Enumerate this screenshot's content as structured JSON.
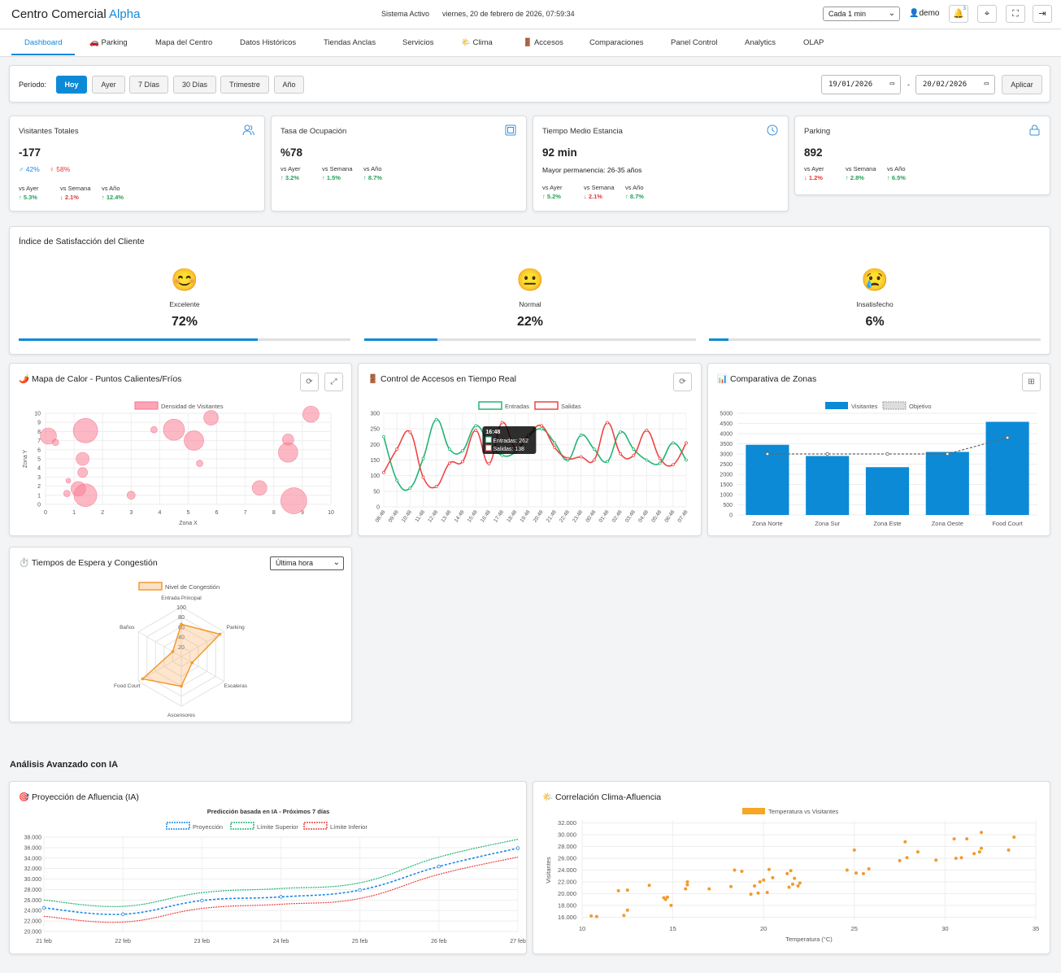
{
  "header": {
    "brand_prefix": "Centro Comercial ",
    "brand_accent": "Alpha",
    "status": "Sistema Activo",
    "datetime": "viernes, 20 de febrero de 2026, 07:59:34",
    "refresh_select": "Cada 1 min",
    "user": "demo",
    "notification_count": "3"
  },
  "tabs": [
    {
      "label": "Dashboard",
      "icon": ""
    },
    {
      "label": "Parking",
      "icon": "🚗"
    },
    {
      "label": "Mapa del Centro",
      "icon": ""
    },
    {
      "label": "Datos Históricos",
      "icon": ""
    },
    {
      "label": "Tiendas Anclas",
      "icon": ""
    },
    {
      "label": "Servicios",
      "icon": ""
    },
    {
      "label": "Clima",
      "icon": "🌤️"
    },
    {
      "label": "Accesos",
      "icon": "🚪"
    },
    {
      "label": "Comparaciones",
      "icon": ""
    },
    {
      "label": "Panel Control",
      "icon": ""
    },
    {
      "label": "Analytics",
      "icon": ""
    },
    {
      "label": "OLAP",
      "icon": ""
    }
  ],
  "period": {
    "label": "Período:",
    "buttons": [
      "Hoy",
      "Ayer",
      "7 Días",
      "30 Días",
      "Trimestre",
      "Año"
    ],
    "date_from": "19/01/2026",
    "date_to": "20/02/2026",
    "separator": "-",
    "apply": "Aplicar"
  },
  "kpis": {
    "visitors": {
      "title": "Visitantes Totales",
      "value": "-177",
      "male": "♂ 42%",
      "female": "♀ 58%",
      "cmp": [
        {
          "label": "vs Ayer",
          "value": "↑ 5.3%",
          "dir": "up"
        },
        {
          "label": "vs Semana",
          "value": "↓ 2.1%",
          "dir": "down"
        },
        {
          "label": "vs Año",
          "value": "↑ 12.4%",
          "dir": "up"
        }
      ]
    },
    "occupancy": {
      "title": "Tasa de Ocupación",
      "value": "%78",
      "cmp": [
        {
          "label": "vs Ayer",
          "value": "↑ 3.2%",
          "dir": "up"
        },
        {
          "label": "vs Semana",
          "value": "↑ 1.5%",
          "dir": "up"
        },
        {
          "label": "vs Año",
          "value": "↑ 8.7%",
          "dir": "up"
        }
      ]
    },
    "stay": {
      "title": "Tiempo Medio Estancia",
      "value": "92 min",
      "sub": "Mayor permanencia: 26-35 años",
      "cmp": [
        {
          "label": "vs Ayer",
          "value": "↑ 5.2%",
          "dir": "up"
        },
        {
          "label": "vs Semana",
          "value": "↓ 2.1%",
          "dir": "down"
        },
        {
          "label": "vs Año",
          "value": "↑ 8.7%",
          "dir": "up"
        }
      ]
    },
    "parking": {
      "title": "Parking",
      "value": "892",
      "cmp": [
        {
          "label": "vs Ayer",
          "value": "↓ 1.2%",
          "dir": "down"
        },
        {
          "label": "vs Semana",
          "value": "↑ 2.8%",
          "dir": "up"
        },
        {
          "label": "vs Año",
          "value": "↑ 6.5%",
          "dir": "up"
        }
      ]
    }
  },
  "satisfaction": {
    "title": "Índice de Satisfacción del Cliente",
    "items": [
      {
        "face": "😊",
        "label": "Excelente",
        "value": "72%",
        "fraction": 0.72
      },
      {
        "face": "😐",
        "label": "Normal",
        "value": "22%",
        "fraction": 0.22
      },
      {
        "face": "😢",
        "label": "Insatisfecho",
        "value": "6%",
        "fraction": 0.06
      }
    ]
  },
  "heatmap": {
    "title": "Mapa de Calor - Puntos Calientes/Fríos",
    "icon": "🌶️",
    "chart_data": {
      "type": "bubble",
      "legend": "Densidad de Visitantes",
      "xlabel": "Zona X",
      "ylabel": "Zona Y",
      "xlim": [
        0,
        10
      ],
      "ylim": [
        0,
        10
      ],
      "xticks": [
        "0",
        "1",
        "2",
        "3",
        "4",
        "5",
        "6",
        "7",
        "8",
        "9",
        "10"
      ],
      "yticks": [
        "0",
        "1",
        "2",
        "3",
        "4",
        "5",
        "6",
        "7",
        "8",
        "9",
        "10"
      ],
      "points": [
        {
          "x": 0.1,
          "y": 7.5,
          "r": 10
        },
        {
          "x": 0.35,
          "y": 6.8,
          "r": 4
        },
        {
          "x": 1.4,
          "y": 8.1,
          "r": 15
        },
        {
          "x": 1.3,
          "y": 5.0,
          "r": 8
        },
        {
          "x": 1.3,
          "y": 3.5,
          "r": 6
        },
        {
          "x": 0.8,
          "y": 2.6,
          "r": 3
        },
        {
          "x": 0.75,
          "y": 1.2,
          "r": 4
        },
        {
          "x": 1.15,
          "y": 1.7,
          "r": 9
        },
        {
          "x": 1.4,
          "y": 1.0,
          "r": 14
        },
        {
          "x": 3.0,
          "y": 1.0,
          "r": 5
        },
        {
          "x": 3.8,
          "y": 8.2,
          "r": 4
        },
        {
          "x": 4.5,
          "y": 8.2,
          "r": 13
        },
        {
          "x": 5.2,
          "y": 7.0,
          "r": 12
        },
        {
          "x": 5.4,
          "y": 4.5,
          "r": 4
        },
        {
          "x": 5.8,
          "y": 9.5,
          "r": 9
        },
        {
          "x": 7.5,
          "y": 1.8,
          "r": 9
        },
        {
          "x": 8.5,
          "y": 7.1,
          "r": 7
        },
        {
          "x": 8.5,
          "y": 5.7,
          "r": 12
        },
        {
          "x": 8.7,
          "y": 0.4,
          "r": 16
        },
        {
          "x": 9.3,
          "y": 9.9,
          "r": 10
        }
      ]
    }
  },
  "access": {
    "title": "Control de Accesos en Tiempo Real",
    "icon": "🚪",
    "tooltip": {
      "time": "16:48",
      "entries": "Entradas: 262",
      "exits": "Salidas: 138"
    },
    "chart_data": {
      "type": "line",
      "categories": [
        "08:48",
        "09:48",
        "10:48",
        "11:48",
        "12:48",
        "13:48",
        "14:48",
        "15:48",
        "16:48",
        "17:48",
        "18:48",
        "19:48",
        "20:48",
        "21:48",
        "22:48",
        "23:48",
        "00:48",
        "01:48",
        "02:48",
        "03:48",
        "04:48",
        "05:48",
        "06:48",
        "07:48"
      ],
      "ylim": [
        0,
        300
      ],
      "yticks": [
        "0",
        "50",
        "100",
        "150",
        "200",
        "250",
        "300"
      ],
      "series": [
        {
          "name": "Entradas",
          "color": "#22b573",
          "values": [
            225,
            85,
            60,
            155,
            280,
            185,
            180,
            260,
            205,
            165,
            175,
            225,
            250,
            205,
            150,
            230,
            185,
            145,
            240,
            185,
            150,
            140,
            205,
            150
          ]
        },
        {
          "name": "Salidas",
          "color": "#ef4444",
          "values": [
            110,
            185,
            240,
            95,
            65,
            140,
            145,
            245,
            138,
            270,
            190,
            230,
            260,
            190,
            155,
            160,
            150,
            270,
            170,
            165,
            245,
            155,
            135,
            205
          ]
        }
      ]
    }
  },
  "zones": {
    "title": "Comparativa de Zonas",
    "icon": "📊",
    "chart_data": {
      "type": "bar",
      "categories": [
        "Zona Norte",
        "Zona Sur",
        "Zona Este",
        "Zona Oeste",
        "Food Court"
      ],
      "ylim": [
        0,
        5000
      ],
      "yticks": [
        "0",
        "500",
        "1000",
        "1500",
        "2000",
        "2500",
        "3000",
        "3500",
        "4000",
        "4500",
        "5000"
      ],
      "series": [
        {
          "name": "Visitantes",
          "color": "#0c8ad6",
          "values": [
            3450,
            2900,
            2350,
            3100,
            4580
          ]
        },
        {
          "name": "Objetivo",
          "color": "#666666",
          "values": [
            3000,
            3000,
            3000,
            3000,
            3800
          ]
        }
      ]
    }
  },
  "waits": {
    "title": "Tiempos de Espera y Congestión",
    "icon": "⏱️",
    "select": "Última hora",
    "chart_data": {
      "type": "radar",
      "legend": "Nivel de Congestión",
      "axes": [
        "Entrada Principal",
        "Parking",
        "Escaleras",
        "Ascensores",
        "Food Court",
        "Baños"
      ],
      "rticks": [
        "20",
        "40",
        "60",
        "80",
        "100"
      ],
      "rmax": 100,
      "values": [
        65,
        90,
        25,
        60,
        90,
        20
      ]
    }
  },
  "ai_section": {
    "title": "Análisis Avanzado con IA"
  },
  "projection": {
    "title": "Proyección de Afluencia (IA)",
    "icon": "🎯",
    "chart_data": {
      "type": "line",
      "title": "Predicción basada en IA - Próximos 7 días",
      "categories": [
        "21 feb",
        "22 feb",
        "23 feb",
        "24 feb",
        "25 feb",
        "26 feb",
        "27 feb"
      ],
      "ylim": [
        20000,
        38000
      ],
      "yticks": [
        "20.000",
        "22.000",
        "24.000",
        "26.000",
        "28.000",
        "30.000",
        "32.000",
        "34.000",
        "36.000",
        "38.000"
      ],
      "series": [
        {
          "name": "Proyección",
          "color": "#1e88e5",
          "values": [
            24500,
            23300,
            25900,
            26600,
            27900,
            32400,
            35900
          ]
        },
        {
          "name": "Límite Superior",
          "color": "#22b573",
          "values": [
            26000,
            24800,
            27400,
            28200,
            29300,
            34200,
            37600
          ]
        },
        {
          "name": "Límite Inferior",
          "color": "#ef4444",
          "values": [
            22900,
            21800,
            24400,
            25200,
            26300,
            30900,
            34200
          ]
        }
      ]
    }
  },
  "weather": {
    "title": "Correlación Clima-Afluencia",
    "icon": "🌤️",
    "chart_data": {
      "type": "scatter",
      "legend": "Temperatura vs Visitantes",
      "xlabel": "Temperatura (°C)",
      "ylabel": "Visitantes",
      "xlim": [
        10,
        35
      ],
      "ylim": [
        15500,
        32500
      ],
      "xticks": [
        "10",
        "15",
        "20",
        "25",
        "30",
        "35"
      ],
      "yticks": [
        "16.000",
        "18.000",
        "20.000",
        "22.000",
        "24.000",
        "26.000",
        "28.000",
        "30.000",
        "32.000"
      ],
      "points": [
        [
          10.5,
          16200
        ],
        [
          10.8,
          16100
        ],
        [
          12.0,
          20500
        ],
        [
          12.3,
          16300
        ],
        [
          12.5,
          20600
        ],
        [
          12.5,
          17200
        ],
        [
          13.7,
          21400
        ],
        [
          14.5,
          19300
        ],
        [
          14.6,
          19000
        ],
        [
          14.7,
          19400
        ],
        [
          14.9,
          18000
        ],
        [
          15.8,
          21500
        ],
        [
          15.8,
          22000
        ],
        [
          15.7,
          20800
        ],
        [
          17.0,
          20800
        ],
        [
          18.2,
          21200
        ],
        [
          18.4,
          24000
        ],
        [
          18.8,
          23800
        ],
        [
          19.3,
          19900
        ],
        [
          19.5,
          21300
        ],
        [
          19.7,
          20100
        ],
        [
          19.8,
          22000
        ],
        [
          20.0,
          22300
        ],
        [
          20.2,
          20200
        ],
        [
          20.3,
          24100
        ],
        [
          20.5,
          22700
        ],
        [
          21.3,
          23400
        ],
        [
          21.5,
          23900
        ],
        [
          21.4,
          21100
        ],
        [
          21.6,
          21600
        ],
        [
          21.7,
          22600
        ],
        [
          21.9,
          21300
        ],
        [
          22.0,
          21800
        ],
        [
          24.6,
          24000
        ],
        [
          25.0,
          27400
        ],
        [
          25.1,
          23500
        ],
        [
          25.5,
          23400
        ],
        [
          25.8,
          24200
        ],
        [
          27.5,
          25600
        ],
        [
          27.8,
          28800
        ],
        [
          27.9,
          26100
        ],
        [
          28.5,
          27100
        ],
        [
          29.5,
          25700
        ],
        [
          30.5,
          29300
        ],
        [
          30.6,
          26000
        ],
        [
          30.9,
          26100
        ],
        [
          31.2,
          29300
        ],
        [
          31.6,
          26800
        ],
        [
          31.9,
          27100
        ],
        [
          32.0,
          30400
        ],
        [
          32.0,
          27700
        ],
        [
          33.5,
          27400
        ],
        [
          33.8,
          29600
        ]
      ]
    }
  }
}
